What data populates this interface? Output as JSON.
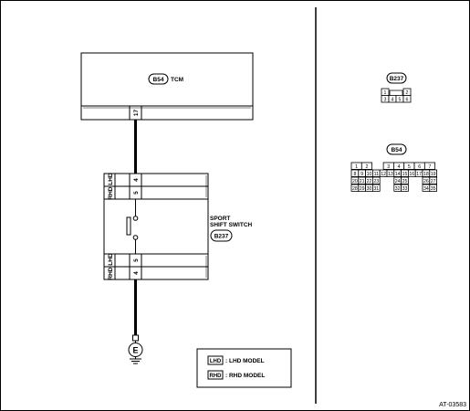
{
  "tcm": {
    "connector": "B54",
    "label": "TCM",
    "pin": "17"
  },
  "switch": {
    "connector": "B237",
    "label_line1": "SPORT",
    "label_line2": "SHIFT SWITCH",
    "top_tag": "RHD LHD",
    "top_pin_rhd": "5",
    "top_pin_lhd": "4",
    "bottom_tag": "RHD LHD",
    "bottom_pin_rhd": "4",
    "bottom_pin_lhd": "5"
  },
  "ground": {
    "label": "E"
  },
  "legend": {
    "lhd_box": "LHD",
    "lhd_text": ": LHD MODEL",
    "rhd_box": "RHD",
    "rhd_text": ": RHD MODEL"
  },
  "connector_b237": {
    "label": "B237",
    "row1": [
      "1",
      "",
      "2"
    ],
    "row2": [
      "3",
      "4",
      "5",
      "6"
    ]
  },
  "connector_b54": {
    "label": "B54",
    "row1": [
      "1",
      "2",
      "",
      "3",
      "4",
      "5",
      "6",
      "7"
    ],
    "row2": [
      "8",
      "9",
      "10",
      "11",
      "12",
      "13",
      "14",
      "15",
      "16",
      "17",
      "18",
      "19"
    ],
    "row3": [
      "20",
      "21",
      "22",
      "23",
      "",
      "24",
      "25",
      "",
      "26",
      "27"
    ],
    "row4": [
      "28",
      "29",
      "30",
      "31",
      "",
      "32",
      "33",
      "",
      "34",
      "35"
    ]
  },
  "figure_code": "AT-03583"
}
